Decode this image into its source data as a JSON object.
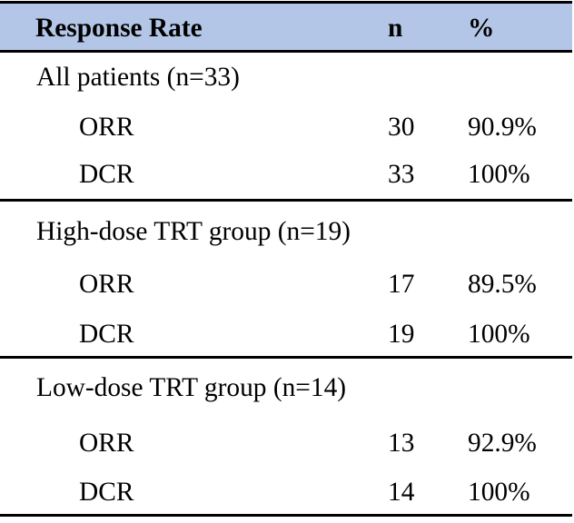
{
  "table": {
    "header": {
      "response_rate": "Response Rate",
      "n": "n",
      "percent": "%"
    },
    "style": {
      "header_bg": "#b4c6e7",
      "rule_color": "#000000",
      "text_color": "#000000",
      "page_bg": "#ffffff"
    },
    "groups": [
      {
        "title": "All patients (n=33)",
        "rows": [
          {
            "label": "ORR",
            "n": "30",
            "percent": "90.9%"
          },
          {
            "label": "DCR",
            "n": "33",
            "percent": "100%"
          }
        ]
      },
      {
        "title": "High-dose TRT group (n=19)",
        "rows": [
          {
            "label": "ORR",
            "n": "17",
            "percent": "89.5%"
          },
          {
            "label": "DCR",
            "n": "19",
            "percent": "100%"
          }
        ]
      },
      {
        "title": "Low-dose TRT group (n=14)",
        "rows": [
          {
            "label": "ORR",
            "n": "13",
            "percent": "92.9%"
          },
          {
            "label": "DCR",
            "n": "14",
            "percent": "100%"
          }
        ]
      }
    ]
  }
}
